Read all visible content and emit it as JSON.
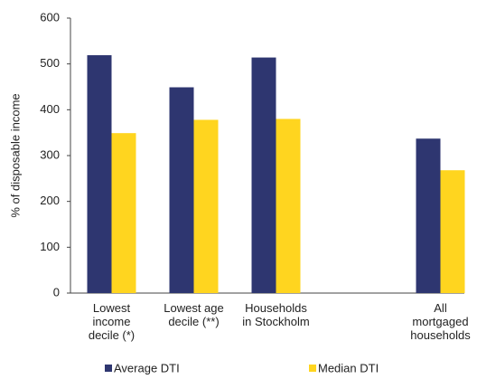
{
  "chart_data": {
    "type": "bar",
    "y_label": "% of disposable income",
    "categories": [
      "Lowest\nincome\ndecile (*)",
      "Lowest age\ndecile (**)",
      "Households\nin Stockholm",
      null,
      "All\nmortgaged\nhouseholds"
    ],
    "series": [
      {
        "name": "Average DTI",
        "color": "#2e3670",
        "values": [
          519,
          449,
          514,
          null,
          337
        ]
      },
      {
        "name": "Median DTI",
        "color": "#ffd51f",
        "values": [
          349,
          378,
          380,
          null,
          268
        ]
      }
    ],
    "ylim": [
      0,
      600
    ],
    "yticks": [
      0,
      100,
      200,
      300,
      400,
      500,
      600
    ],
    "grid": false
  }
}
